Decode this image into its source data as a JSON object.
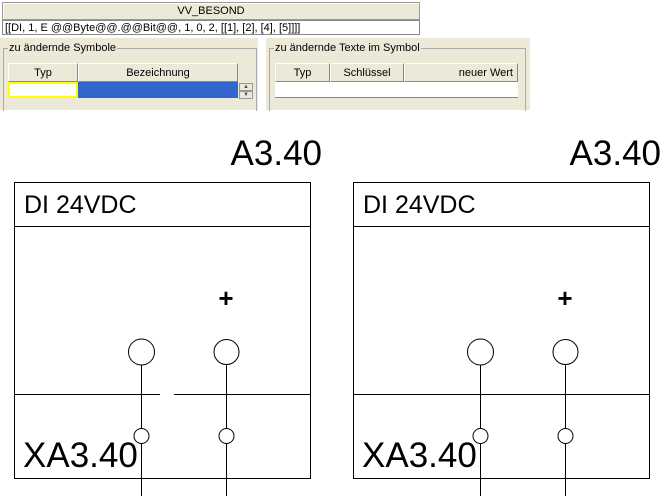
{
  "dialog": {
    "title": "VV_BESOND",
    "formula": "[[DI, 1, E @@Byte@@.@@Bit@@, 1, 0, 2, [[1], [2], [4], [5]]]]",
    "symbols_group": {
      "label": "zu ändernde Symbole",
      "columns": [
        "Typ",
        "Bezeichnung"
      ]
    },
    "texts_group": {
      "label": "zu ändernde Texte im Symbol",
      "columns": [
        "Typ",
        "Schlüssel",
        "neuer Wert"
      ]
    },
    "selection_color": "#3366cc",
    "focus_color": "#ffff00"
  },
  "symbols": [
    {
      "ref": "A3.40",
      "module": "DI 24VDC",
      "terminal": "XA3.40",
      "plus": "+"
    },
    {
      "ref": "A3.40",
      "module": "DI 24VDC",
      "terminal": "XA3.40",
      "plus": "+"
    }
  ]
}
